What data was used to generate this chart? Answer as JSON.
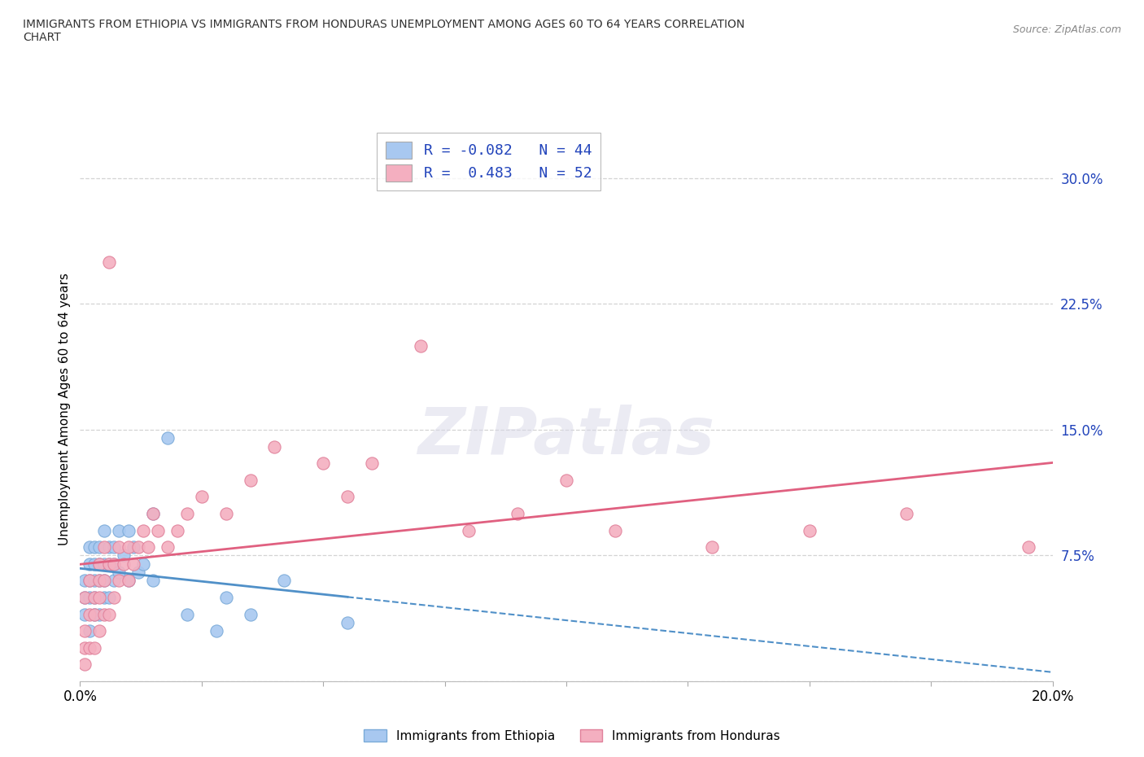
{
  "title": "IMMIGRANTS FROM ETHIOPIA VS IMMIGRANTS FROM HONDURAS UNEMPLOYMENT AMONG AGES 60 TO 64 YEARS CORRELATION\nCHART",
  "source": "Source: ZipAtlas.com",
  "ylabel": "Unemployment Among Ages 60 to 64 years",
  "xlim": [
    0.0,
    0.2
  ],
  "ylim": [
    0.0,
    0.325
  ],
  "yticks": [
    0.0,
    0.075,
    0.15,
    0.225,
    0.3
  ],
  "yticklabels": [
    "",
    "7.5%",
    "15.0%",
    "22.5%",
    "30.0%"
  ],
  "ethiopia_color": "#a8c8f0",
  "ethiopia_edge": "#7aaad8",
  "honduras_color": "#f4afc0",
  "honduras_edge": "#e0809a",
  "ethiopia_line_color": "#5090c8",
  "honduras_line_color": "#e06080",
  "ethiopia_R": -0.082,
  "ethiopia_N": 44,
  "honduras_R": 0.483,
  "honduras_N": 52,
  "background_color": "#ffffff",
  "grid_color": "#c8c8c8",
  "label_color": "#2244bb",
  "ethiopia_x": [
    0.001,
    0.001,
    0.001,
    0.002,
    0.002,
    0.002,
    0.002,
    0.002,
    0.003,
    0.003,
    0.003,
    0.003,
    0.003,
    0.004,
    0.004,
    0.004,
    0.004,
    0.005,
    0.005,
    0.005,
    0.005,
    0.006,
    0.006,
    0.006,
    0.007,
    0.007,
    0.007,
    0.008,
    0.008,
    0.009,
    0.01,
    0.01,
    0.011,
    0.012,
    0.013,
    0.015,
    0.015,
    0.018,
    0.022,
    0.028,
    0.03,
    0.035,
    0.042,
    0.055
  ],
  "ethiopia_y": [
    0.05,
    0.04,
    0.06,
    0.03,
    0.05,
    0.06,
    0.07,
    0.08,
    0.04,
    0.05,
    0.06,
    0.07,
    0.08,
    0.04,
    0.06,
    0.07,
    0.08,
    0.05,
    0.06,
    0.07,
    0.09,
    0.05,
    0.07,
    0.08,
    0.06,
    0.07,
    0.08,
    0.065,
    0.09,
    0.075,
    0.06,
    0.09,
    0.08,
    0.065,
    0.07,
    0.06,
    0.1,
    0.145,
    0.04,
    0.03,
    0.05,
    0.04,
    0.06,
    0.035
  ],
  "honduras_x": [
    0.001,
    0.001,
    0.001,
    0.001,
    0.002,
    0.002,
    0.002,
    0.003,
    0.003,
    0.003,
    0.004,
    0.004,
    0.004,
    0.004,
    0.005,
    0.005,
    0.005,
    0.006,
    0.006,
    0.006,
    0.007,
    0.007,
    0.008,
    0.008,
    0.009,
    0.01,
    0.01,
    0.011,
    0.012,
    0.013,
    0.014,
    0.015,
    0.016,
    0.018,
    0.02,
    0.022,
    0.025,
    0.03,
    0.035,
    0.04,
    0.05,
    0.055,
    0.06,
    0.07,
    0.08,
    0.09,
    0.1,
    0.11,
    0.13,
    0.15,
    0.17,
    0.195
  ],
  "honduras_y": [
    0.01,
    0.02,
    0.03,
    0.05,
    0.02,
    0.04,
    0.06,
    0.02,
    0.04,
    0.05,
    0.03,
    0.05,
    0.06,
    0.07,
    0.04,
    0.06,
    0.08,
    0.04,
    0.07,
    0.25,
    0.05,
    0.07,
    0.06,
    0.08,
    0.07,
    0.06,
    0.08,
    0.07,
    0.08,
    0.09,
    0.08,
    0.1,
    0.09,
    0.08,
    0.09,
    0.1,
    0.11,
    0.1,
    0.12,
    0.14,
    0.13,
    0.11,
    0.13,
    0.2,
    0.09,
    0.1,
    0.12,
    0.09,
    0.08,
    0.09,
    0.1,
    0.08
  ]
}
